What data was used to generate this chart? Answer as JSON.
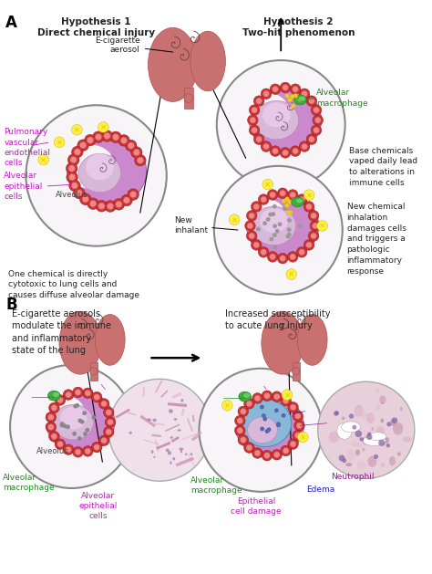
{
  "background_color": "#ffffff",
  "panel_A_label": "A",
  "panel_B_label": "B",
  "hyp1_title": "Hypothesis 1\nDirect chemical injury",
  "hyp2_title": "Hypothesis 2\nTwo-hit phenomenon",
  "ecig_label": "E-cigarette\naerosol",
  "alveolus_label": "Alveolus",
  "alv_epi_label": "Alveolar\nepithelial\ncells",
  "pulm_vasc_label": "Pulmonary\nvascular\nendothelial\ncells",
  "hyp1_desc": "One chemical is directly\ncytotoxic to lung cells and\ncauses diffuse alveolar damage",
  "base_chem_label": "Base chemicals\nvaped daily lead\nto alterations in\nimmune cells",
  "alv_macro_label1": "Alveolar\nmacrophage",
  "new_inhal_label": "New\ninhalant",
  "new_chem_label": "New chemical\ninhalation\ndamages cells\nand triggers a\npathologic\ninflammatory\nresponse",
  "panel_B_left_title": "E-cigarette aerosols\nmodulate the immune\nand inflammatory\nstate of the lung",
  "panel_B_right_title": "Increased susceptibility\nto acute lung injury",
  "alveolus_label_B": "Alveolus",
  "alv_macro_B_left": "Alveolar\nmacrophage",
  "alv_epi_B_left": "Alveolar\nepithelial\ncells",
  "alv_macro_B_right": "Alveolar\nmacrophage",
  "neutrophil_label": "Neutrophil",
  "edema_label": "Edema",
  "epi_damage_label": "Epithelial\ncell damage",
  "lung_color": "#c97070",
  "lung_dark": "#b05050",
  "alv_wall_color": "#cc88cc",
  "alv_inner_color": "#d8a8d8",
  "alv_center_color": "#e0b8e0",
  "cell_outer_color": "#cc3333",
  "cell_inner_color": "#ee8888",
  "cell_border": "#881111",
  "yellow_x_color": "#ddcc00",
  "yellow_x_bg": "#ffee44",
  "green_macro": "#44aa44",
  "green_macro_dark": "#228822",
  "dot_gray": "#888888",
  "dot_dark": "#555555",
  "dot_blue": "#4466aa",
  "circle_bg": "#f8f5f8",
  "circle_border": "#888888",
  "text_magenta": "#bb22bb",
  "text_green": "#228822",
  "text_blue": "#2222bb",
  "text_purple": "#882288",
  "text_dark": "#222222",
  "edema_color": "#88b8d8",
  "edema_border": "#5588aa",
  "histo_pink": "#e8c8d8",
  "histo_purple": "#c090b8",
  "histo_dark": "#a06080"
}
